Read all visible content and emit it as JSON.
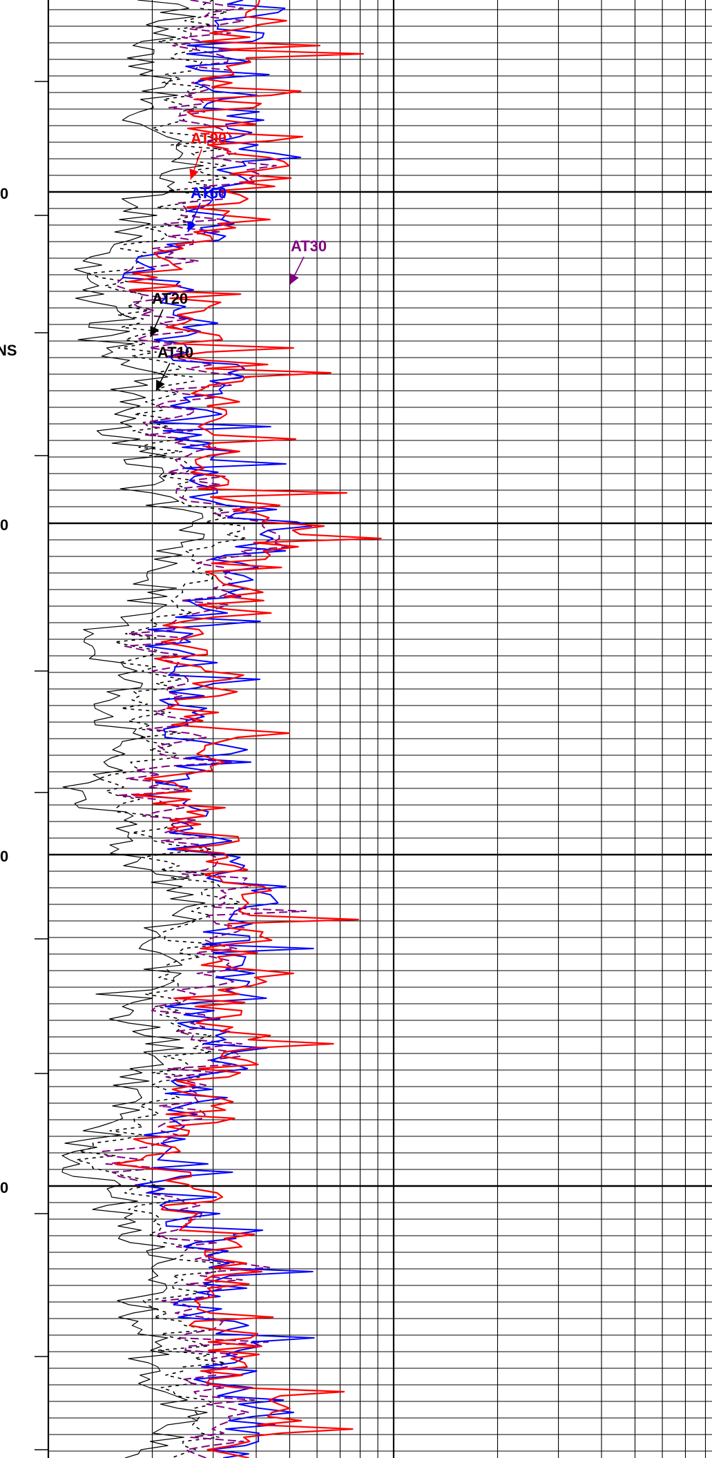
{
  "chart_data": {
    "type": "line",
    "title": "",
    "xlabel": "",
    "ylabel": "",
    "x_scale": "log",
    "x_decades": 2,
    "depth_labels": [
      {
        "label": "0",
        "depth": 0
      },
      {
        "label": "0",
        "depth": 1
      },
      {
        "label": "0",
        "depth": 2
      },
      {
        "label": "0",
        "depth": 3
      }
    ],
    "units_label": "NS",
    "series": [
      {
        "name": "AT90",
        "color": "#ff0000",
        "dash": "solid"
      },
      {
        "name": "AT60",
        "color": "#0000ff",
        "dash": "solid"
      },
      {
        "name": "AT30",
        "color": "#800080",
        "dash": "dashed"
      },
      {
        "name": "AT20",
        "color": "#000000",
        "dash": "dotted"
      },
      {
        "name": "AT10",
        "color": "#000000",
        "dash": "solid"
      }
    ]
  },
  "annotations": {
    "at90": "AT90",
    "at60": "AT60",
    "at30": "AT30",
    "at20": "AT20",
    "at10": "AT10"
  },
  "colors": {
    "grid": "#000000",
    "at90": "#ff0000",
    "at60": "#0000ff",
    "at30": "#800080",
    "at10": "#000000"
  }
}
